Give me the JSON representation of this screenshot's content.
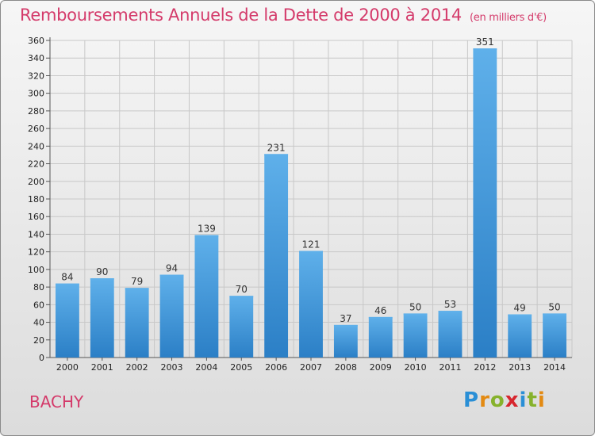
{
  "header": {
    "title": "Remboursements Annuels de la Dette de 2000 à 2014",
    "unit": "(en milliers d'€)"
  },
  "commune": "BACHY",
  "logo": {
    "letters": [
      {
        "char": "P",
        "color": "#2a8fd6"
      },
      {
        "char": "r",
        "color": "#e38a12"
      },
      {
        "char": "o",
        "color": "#86b22c"
      },
      {
        "char": "x",
        "color": "#d7262e"
      },
      {
        "char": "i",
        "color": "#2a8fd6"
      },
      {
        "char": "t",
        "color": "#86b22c"
      },
      {
        "char": "i",
        "color": "#e38a12"
      }
    ]
  },
  "colors": {
    "bar_light": "#5fb0ea",
    "bar_dark": "#2b7fc6",
    "accent": "#d43a6a",
    "grid": "#c8c8c8"
  },
  "chart_data": {
    "type": "bar",
    "title": "Remboursements Annuels de la Dette de 2000 à 2014",
    "subtitle": "(en milliers d'€)",
    "xlabel": "",
    "ylabel": "",
    "categories": [
      "2000",
      "2001",
      "2002",
      "2003",
      "2004",
      "2005",
      "2006",
      "2007",
      "2008",
      "2009",
      "2010",
      "2011",
      "2012",
      "2013",
      "2014"
    ],
    "values": [
      84,
      90,
      79,
      94,
      139,
      70,
      231,
      121,
      37,
      46,
      50,
      53,
      351,
      49,
      50
    ],
    "ylim": [
      0,
      360
    ],
    "yticks": [
      0,
      20,
      40,
      60,
      80,
      100,
      120,
      140,
      160,
      180,
      200,
      220,
      240,
      260,
      280,
      300,
      320,
      340,
      360
    ],
    "grid": true,
    "legend": "none"
  }
}
